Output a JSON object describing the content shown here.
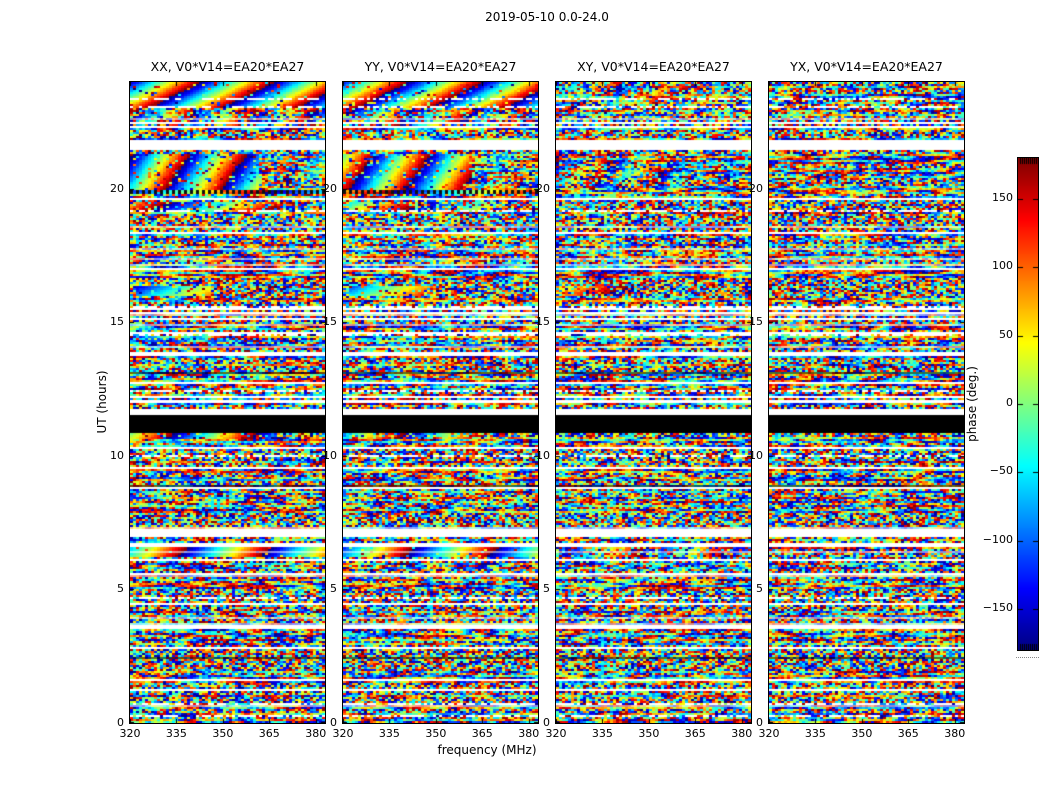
{
  "figure": {
    "title": "2019-05-10 0.0-24.0",
    "background": "#ffffff",
    "text_color": "#000000"
  },
  "chart_data": {
    "type": "heatmap",
    "title": "2019-05-10 0.0-24.0",
    "subtitle": "",
    "xlabel": "frequency (MHz)",
    "ylabel": "UT (hours)",
    "x_range_mhz": [
      320,
      383
    ],
    "y_range_hours": [
      0,
      24
    ],
    "x_ticks": [
      320,
      335,
      350,
      365,
      380
    ],
    "y_ticks": [
      0,
      5,
      10,
      15,
      20
    ],
    "grid": false,
    "colormap": "jet",
    "panels": [
      {
        "pol": "XX",
        "title": "XX, V0*V14=EA20*EA27"
      },
      {
        "pol": "YY",
        "title": "YY, V0*V14=EA20*EA27"
      },
      {
        "pol": "XY",
        "title": "XY, V0*V14=EA20*EA27"
      },
      {
        "pol": "YX",
        "title": "YX, V0*V14=EA20*EA27"
      }
    ],
    "colorbar": {
      "label": "phase (deg.)",
      "range": [
        -180,
        180
      ],
      "tick_values": [
        150,
        100,
        50,
        0,
        -50,
        -100,
        -150
      ],
      "tick_labels": [
        "150",
        "100",
        "50",
        "0",
        "−50",
        "−100",
        "−150"
      ]
    },
    "gaps": [
      {
        "t0": 10.9,
        "t1": 11.55,
        "type": "black"
      },
      {
        "t0": 11.55,
        "t1": 11.59,
        "type": "white"
      },
      {
        "t0": 11.59,
        "t1": 11.63,
        "type": "black"
      },
      {
        "t0": 11.63,
        "t1": 11.8,
        "type": "white"
      },
      {
        "t0": 11.82,
        "t1": 11.86,
        "type": "black"
      },
      {
        "t0": 21.45,
        "t1": 21.85,
        "type": "white"
      },
      {
        "t0": 22.25,
        "t1": 22.33,
        "type": "white"
      },
      {
        "t0": 19.55,
        "t1": 19.62,
        "type": "white"
      },
      {
        "t0": 18.3,
        "t1": 18.36,
        "type": "white"
      },
      {
        "t0": 16.95,
        "t1": 17.02,
        "type": "white"
      },
      {
        "t0": 15.45,
        "t1": 15.52,
        "type": "white"
      },
      {
        "t0": 14.55,
        "t1": 14.62,
        "type": "white"
      },
      {
        "t0": 13.75,
        "t1": 13.85,
        "type": "white"
      },
      {
        "t0": 12.7,
        "t1": 12.76,
        "type": "white"
      },
      {
        "t0": 12.15,
        "t1": 12.2,
        "type": "white"
      },
      {
        "t0": 10.3,
        "t1": 10.36,
        "type": "white"
      },
      {
        "t0": 9.55,
        "t1": 9.6,
        "type": "white"
      },
      {
        "t0": 8.75,
        "t1": 8.82,
        "type": "white"
      },
      {
        "t0": 8.0,
        "t1": 8.05,
        "type": "white"
      },
      {
        "t0": 7.0,
        "t1": 7.28,
        "type": "white"
      },
      {
        "t0": 6.62,
        "t1": 6.72,
        "type": "white"
      },
      {
        "t0": 6.1,
        "t1": 6.16,
        "type": "white"
      },
      {
        "t0": 5.3,
        "t1": 5.36,
        "type": "white"
      },
      {
        "t0": 4.45,
        "t1": 4.5,
        "type": "white"
      },
      {
        "t0": 3.6,
        "t1": 3.66,
        "type": "white"
      },
      {
        "t0": 2.8,
        "t1": 2.86,
        "type": "white"
      },
      {
        "t0": 2.0,
        "t1": 2.05,
        "type": "white"
      },
      {
        "t0": 1.2,
        "t1": 1.26,
        "type": "white"
      },
      {
        "t0": 0.5,
        "t1": 0.55,
        "type": "white"
      }
    ],
    "features": [
      {
        "t0": 23.05,
        "t1": 24.0,
        "type": "smooth",
        "waves": 2.6,
        "drift": 260,
        "panels": [
          0.93,
          0.88,
          0.3,
          0
        ]
      },
      {
        "t0": 22.35,
        "t1": 23.05,
        "type": "smooth",
        "waves": 3.2,
        "drift": 150,
        "panels": [
          0.45,
          0.4,
          0.12,
          0
        ]
      },
      {
        "t0": 19.95,
        "t1": 21.3,
        "type": "smooth",
        "waves": 3.4,
        "drift": 120,
        "fsplit": 0.66,
        "panels": [
          0.88,
          0.84,
          0.38,
          0
        ]
      },
      {
        "t0": 19.83,
        "t1": 19.95,
        "type": "dashes",
        "waves": 1.2,
        "drift": 0,
        "panels": [
          0.9,
          0.9,
          0,
          0
        ]
      },
      {
        "t0": 19.15,
        "t1": 19.5,
        "type": "smooth",
        "waves": 1.6,
        "drift": 200,
        "fsplit": 0.75,
        "panels": [
          0.65,
          0.6,
          0.2,
          0
        ]
      },
      {
        "t0": 17.25,
        "t1": 17.5,
        "type": "smooth",
        "waves": 2.0,
        "drift": 150,
        "panels": [
          0.5,
          0.45,
          0.25,
          0
        ]
      },
      {
        "t0": 16.0,
        "t1": 16.35,
        "type": "blob",
        "waves": 1.3,
        "drift": 180,
        "panels": [
          0.9,
          0.85,
          0.55,
          0
        ]
      },
      {
        "t0": 10.65,
        "t1": 10.9,
        "type": "smooth",
        "waves": 2.3,
        "drift": 160,
        "fsplit": 0.72,
        "panels": [
          0.85,
          0.55,
          0.3,
          0
        ]
      },
      {
        "t0": 6.2,
        "t1": 6.6,
        "type": "smooth",
        "waves": 2.3,
        "drift": 120,
        "panels": [
          0.95,
          0.93,
          0.5,
          0.05
        ]
      }
    ],
    "render": {
      "seed": 42,
      "rows": 320,
      "cols": 65
    }
  }
}
